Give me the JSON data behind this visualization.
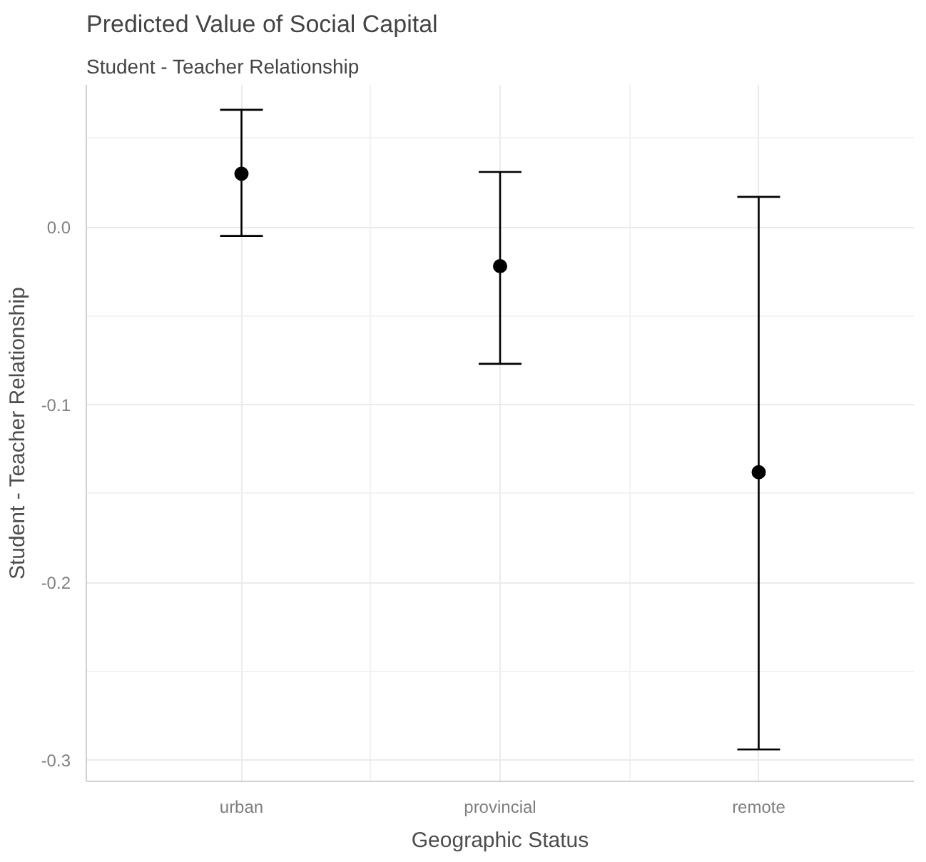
{
  "chart_data": {
    "type": "scatter",
    "title": "Predicted Value of Social Capital",
    "subtitle": "Student - Teacher Relationship",
    "xlabel": "Geographic Status",
    "ylabel": "Student - Teacher Relationship",
    "categories": [
      "urban",
      "provincial",
      "remote"
    ],
    "values": [
      0.03,
      -0.022,
      -0.138
    ],
    "errors": [
      [
        -0.005,
        0.066
      ],
      [
        -0.077,
        0.031
      ],
      [
        -0.294,
        0.017
      ]
    ],
    "color": "#000000",
    "marker": "circle",
    "grid": true,
    "ylim": [
      -0.312,
      0.08
    ],
    "yticks": [
      {
        "value": -0.3,
        "label": "-0.3"
      },
      {
        "value": -0.2,
        "label": "-0.2"
      },
      {
        "value": -0.1,
        "label": "-0.1"
      },
      {
        "value": 0,
        "label": "0.0"
      }
    ]
  }
}
